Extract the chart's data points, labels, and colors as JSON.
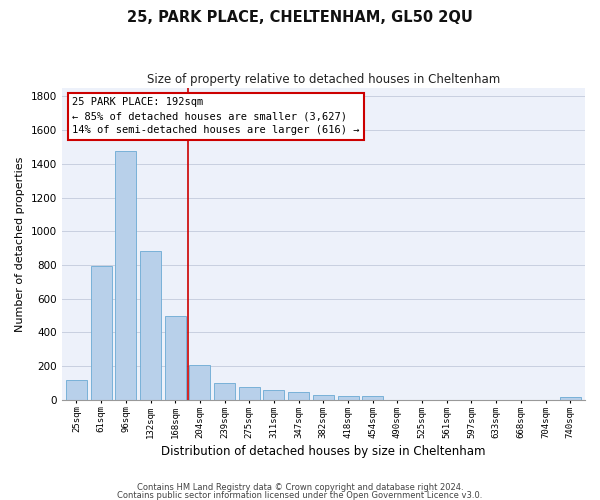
{
  "title1": "25, PARK PLACE, CHELTENHAM, GL50 2QU",
  "title2": "Size of property relative to detached houses in Cheltenham",
  "xlabel": "Distribution of detached houses by size in Cheltenham",
  "ylabel": "Number of detached properties",
  "categories": [
    "25sqm",
    "61sqm",
    "96sqm",
    "132sqm",
    "168sqm",
    "204sqm",
    "239sqm",
    "275sqm",
    "311sqm",
    "347sqm",
    "382sqm",
    "418sqm",
    "454sqm",
    "490sqm",
    "525sqm",
    "561sqm",
    "597sqm",
    "633sqm",
    "668sqm",
    "704sqm",
    "740sqm"
  ],
  "values": [
    120,
    795,
    1475,
    885,
    495,
    205,
    100,
    75,
    55,
    45,
    30,
    25,
    20,
    0,
    0,
    0,
    0,
    0,
    0,
    0,
    18
  ],
  "bar_color": "#b8d0ea",
  "bar_edge_color": "#6aaad4",
  "grid_color": "#c8cfe0",
  "background_color": "#edf1fa",
  "vline_color": "#cc0000",
  "annotation_line1": "25 PARK PLACE: 192sqm",
  "annotation_line2": "← 85% of detached houses are smaller (3,627)",
  "annotation_line3": "14% of semi-detached houses are larger (616) →",
  "annotation_box_color": "#ffffff",
  "annotation_box_edge": "#cc0000",
  "footer1": "Contains HM Land Registry data © Crown copyright and database right 2024.",
  "footer2": "Contains public sector information licensed under the Open Government Licence v3.0.",
  "ylim": [
    0,
    1850
  ],
  "yticks": [
    0,
    200,
    400,
    600,
    800,
    1000,
    1200,
    1400,
    1600,
    1800
  ],
  "vline_pos": 4.5,
  "figwidth": 6.0,
  "figheight": 5.0,
  "dpi": 100
}
